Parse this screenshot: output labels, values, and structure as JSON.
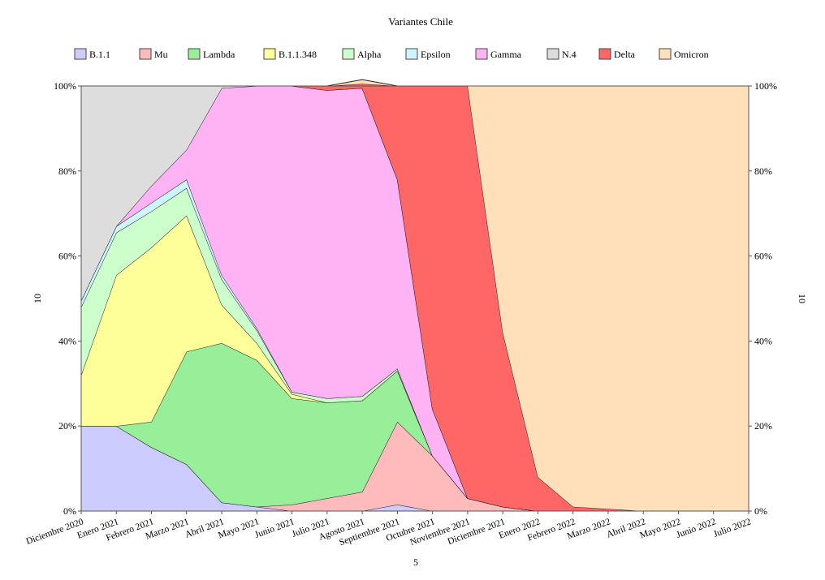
{
  "chart_data": {
    "type": "area",
    "stacked": true,
    "percent": true,
    "title": "Variantes Chile",
    "xlabel": "5",
    "ylabel": "10",
    "ylabel_right": "10",
    "ylim": [
      0,
      100
    ],
    "yticks": [
      0,
      20,
      40,
      60,
      80,
      100
    ],
    "ytick_labels": [
      "0%",
      "20%",
      "40%",
      "60%",
      "80%",
      "100%"
    ],
    "legend_position": "top",
    "categories": [
      "Diciembre 2020",
      "Enero 2021",
      "Febrero 2021",
      "Marzo 2021",
      "Abril 2021",
      "Mayo 2021",
      "Junio 2021",
      "Julio 2021",
      "Agosto 2021",
      "Septiembre 2021",
      "Octubre 2021",
      "Noviembre 2021",
      "Diciembre 2021",
      "Enero 2022",
      "Febrero 2022",
      "Marzo 2022",
      "Abril 2022",
      "Mayo 2022",
      "Junio 2022",
      "Julio 2022"
    ],
    "series": [
      {
        "name": "B.1.1",
        "color": "#ccccff",
        "values": [
          20,
          20,
          15,
          11,
          2,
          1,
          0,
          0,
          0,
          1.5,
          0,
          0,
          0,
          0,
          0,
          0,
          0,
          0,
          0,
          0
        ]
      },
      {
        "name": "Mu",
        "color": "#ffbbbb",
        "values": [
          0,
          0,
          0,
          0,
          0,
          0,
          1.5,
          3,
          4.5,
          19.5,
          13,
          3,
          1,
          0,
          0,
          0,
          0,
          0,
          0,
          0
        ]
      },
      {
        "name": "Lambda",
        "color": "#99ee99",
        "values": [
          0,
          0,
          6,
          26.5,
          37.5,
          34.5,
          25,
          22.5,
          21.5,
          12,
          0,
          0,
          0,
          0,
          0,
          0,
          0,
          0,
          0,
          0
        ]
      },
      {
        "name": "B.1.1.348",
        "color": "#ffff99",
        "values": [
          12,
          35.5,
          41,
          32,
          9,
          4,
          1,
          0,
          0,
          0,
          0,
          0,
          0,
          0,
          0,
          0,
          0,
          0,
          0,
          0
        ]
      },
      {
        "name": "Alpha",
        "color": "#ccffcc",
        "values": [
          16,
          10,
          8.5,
          6.5,
          6,
          3,
          0.5,
          1,
          1,
          0.5,
          0,
          0,
          0,
          0,
          0,
          0,
          0,
          0,
          0,
          0
        ]
      },
      {
        "name": "Epsilon",
        "color": "#ccf5ff",
        "values": [
          1.5,
          1.5,
          2,
          2,
          1,
          0.5,
          0,
          0,
          0,
          0,
          0,
          0,
          0,
          0,
          0,
          0,
          0,
          0,
          0,
          0
        ]
      },
      {
        "name": "Gamma",
        "color": "#ffb3f5",
        "values": [
          0,
          0,
          4,
          7,
          44,
          57,
          72,
          72.5,
          72.5,
          44.5,
          11,
          0,
          0,
          0,
          0,
          0,
          0,
          0,
          0,
          0
        ]
      },
      {
        "name": "N.4",
        "color": "#dddddd",
        "values": [
          50.5,
          33,
          23.5,
          15,
          0.5,
          0,
          0,
          0,
          0,
          0,
          0,
          0,
          0,
          0,
          0,
          0,
          0,
          0,
          0,
          0
        ]
      },
      {
        "name": "Delta",
        "color": "#ff6666",
        "values": [
          0,
          0,
          0,
          0,
          0,
          0,
          0,
          1,
          1,
          22,
          76,
          97,
          41,
          8,
          1,
          0.5,
          0,
          0,
          0,
          0
        ]
      },
      {
        "name": "Omicron",
        "color": "#ffe0bb",
        "values": [
          0,
          0,
          0,
          0,
          0,
          0,
          0,
          0,
          1,
          0,
          0,
          0,
          58,
          92,
          99,
          99.5,
          100,
          100,
          100,
          100
        ]
      }
    ]
  }
}
